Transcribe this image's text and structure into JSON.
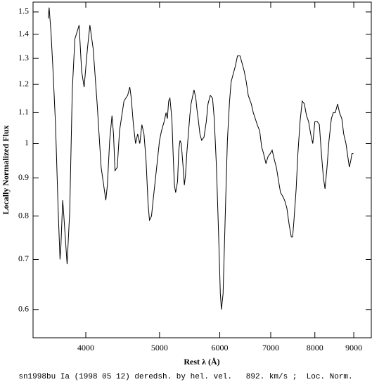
{
  "chart_data": {
    "type": "line",
    "xlabel": "Rest λ (Å)",
    "ylabel": "Locally Normalized Flux",
    "caption": "sn1998bu Ia (1998 05 12) deredsh. by hel. vel.   892. km/s ;  Loc. Norm.",
    "xscale": "log",
    "yscale": "log",
    "xlim": [
      3410,
      9490
    ],
    "ylim": [
      0.55,
      1.546
    ],
    "xticks": [
      4000,
      5000,
      6000,
      7000,
      8000,
      9000
    ],
    "yticks": [
      0.6,
      0.7,
      0.8,
      0.9,
      1,
      1.1,
      1.2,
      1.3,
      1.4,
      1.5
    ],
    "grid": false,
    "x": [
      3570,
      3580,
      3600,
      3620,
      3650,
      3680,
      3700,
      3710,
      3730,
      3740,
      3780,
      3810,
      3840,
      3870,
      3920,
      3950,
      3980,
      4020,
      4050,
      4090,
      4140,
      4190,
      4250,
      4270,
      4300,
      4330,
      4350,
      4370,
      4400,
      4430,
      4490,
      4540,
      4570,
      4590,
      4620,
      4650,
      4680,
      4710,
      4740,
      4770,
      4800,
      4830,
      4850,
      4880,
      4910,
      4940,
      5000,
      5030,
      5070,
      5100,
      5120,
      5140,
      5160,
      5190,
      5210,
      5230,
      5250,
      5280,
      5300,
      5320,
      5340,
      5370,
      5390,
      5410,
      5430,
      5460,
      5480,
      5500,
      5530,
      5550,
      5580,
      5600,
      5620,
      5650,
      5680,
      5720,
      5760,
      5790,
      5830,
      5870,
      5900,
      5940,
      5980,
      6010,
      6030,
      6060,
      6080,
      6110,
      6140,
      6180,
      6210,
      6250,
      6290,
      6330,
      6380,
      6420,
      6460,
      6500,
      6540,
      6600,
      6640,
      6680,
      6720,
      6770,
      6810,
      6850,
      6900,
      6940,
      6990,
      7030,
      7080,
      7120,
      7170,
      7210,
      7260,
      7300,
      7350,
      7400,
      7450,
      7480,
      7510,
      7560,
      7600,
      7650,
      7700,
      7750,
      7800,
      7850,
      7900,
      7950,
      8000,
      8060,
      8110,
      8160,
      8210,
      8250,
      8300,
      8350,
      8410,
      8460,
      8510,
      8570,
      8620,
      8680,
      8730,
      8790,
      8840,
      8880,
      8920,
      8950,
      8990
    ],
    "series": [
      {
        "color": "#000000",
        "values": [
          1.47,
          1.52,
          1.41,
          1.27,
          1.06,
          0.81,
          0.7,
          0.73,
          0.84,
          0.81,
          0.69,
          0.81,
          1.18,
          1.38,
          1.44,
          1.25,
          1.19,
          1.34,
          1.44,
          1.34,
          1.13,
          0.93,
          0.84,
          0.88,
          1.01,
          1.09,
          1.03,
          0.92,
          0.93,
          1.04,
          1.14,
          1.16,
          1.19,
          1.15,
          1.06,
          1.0,
          1.03,
          1.0,
          1.06,
          1.03,
          0.95,
          0.83,
          0.79,
          0.8,
          0.85,
          0.9,
          1.01,
          1.04,
          1.07,
          1.1,
          1.08,
          1.14,
          1.15,
          1.08,
          0.97,
          0.88,
          0.86,
          0.89,
          0.98,
          1.01,
          1.0,
          0.93,
          0.88,
          0.91,
          0.97,
          1.04,
          1.09,
          1.13,
          1.16,
          1.18,
          1.15,
          1.11,
          1.08,
          1.03,
          1.01,
          1.02,
          1.07,
          1.13,
          1.16,
          1.15,
          1.08,
          0.93,
          0.75,
          0.63,
          0.6,
          0.63,
          0.71,
          0.85,
          1.01,
          1.14,
          1.21,
          1.24,
          1.27,
          1.31,
          1.31,
          1.28,
          1.25,
          1.21,
          1.16,
          1.13,
          1.1,
          1.08,
          1.06,
          1.04,
          0.99,
          0.97,
          0.94,
          0.96,
          0.97,
          0.98,
          0.95,
          0.93,
          0.89,
          0.86,
          0.85,
          0.84,
          0.82,
          0.78,
          0.75,
          0.75,
          0.79,
          0.87,
          0.97,
          1.07,
          1.14,
          1.13,
          1.09,
          1.07,
          1.03,
          1.0,
          1.07,
          1.07,
          1.06,
          0.97,
          0.9,
          0.87,
          0.93,
          1.01,
          1.08,
          1.1,
          1.1,
          1.13,
          1.1,
          1.08,
          1.03,
          1.0,
          0.96,
          0.93,
          0.95,
          0.97,
          0.97
        ]
      }
    ]
  }
}
